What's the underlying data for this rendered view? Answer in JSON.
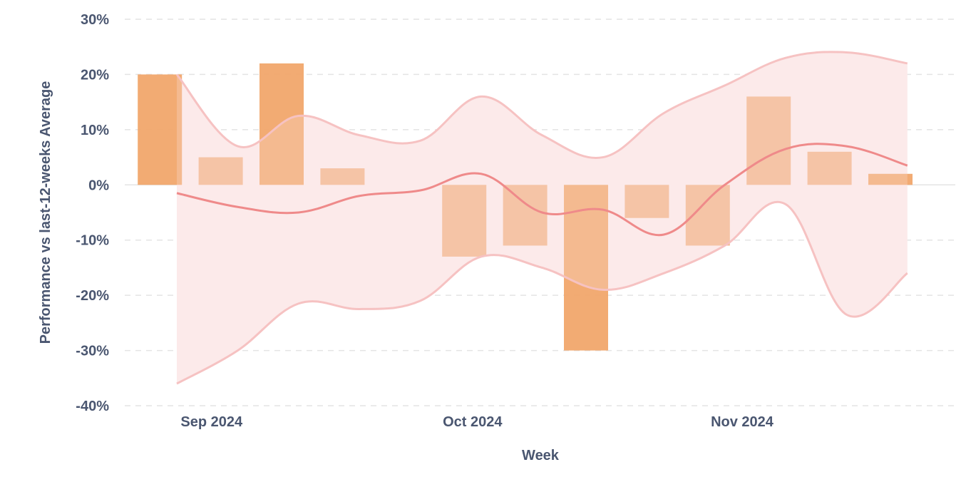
{
  "chart_data": {
    "type": "bar",
    "title": "",
    "xlabel": "Week",
    "ylabel": "Performance vs last-12-weeks Average",
    "ylim": [
      -40,
      30
    ],
    "y_ticks": [
      30,
      20,
      10,
      0,
      -10,
      -20,
      -30,
      -40
    ],
    "y_tick_format": "percent",
    "x_tick_labels": [
      {
        "label": "Sep 2024",
        "date": "2024-09-01"
      },
      {
        "label": "Oct 2024",
        "date": "2024-10-01"
      },
      {
        "label": "Nov 2024",
        "date": "2024-11-01"
      }
    ],
    "grid": true,
    "legend": "none",
    "colors": {
      "bar_positive": "#f2b48a",
      "bar_strong": "#f1a66c",
      "band_fill": "#fdeaea",
      "band_edge": "#f6c2c2",
      "trend_line": "#ef8a8a",
      "axis_text": "#4a5670"
    },
    "bars": [
      {
        "date": "2024-08-26",
        "value": 20,
        "emphasis": true
      },
      {
        "date": "2024-09-02",
        "value": 5,
        "emphasis": false
      },
      {
        "date": "2024-09-09",
        "value": 22,
        "emphasis": true
      },
      {
        "date": "2024-09-16",
        "value": 3,
        "emphasis": false
      },
      {
        "date": "2024-09-30",
        "value": -13,
        "emphasis": false
      },
      {
        "date": "2024-10-07",
        "value": -11,
        "emphasis": false
      },
      {
        "date": "2024-10-14",
        "value": -30,
        "emphasis": true
      },
      {
        "date": "2024-10-21",
        "value": -6,
        "emphasis": false
      },
      {
        "date": "2024-10-28",
        "value": -11,
        "emphasis": false
      },
      {
        "date": "2024-11-04",
        "value": 16,
        "emphasis": false
      },
      {
        "date": "2024-11-11",
        "value": 6,
        "emphasis": false
      },
      {
        "date": "2024-11-18",
        "value": 2,
        "emphasis": true
      }
    ],
    "series": [
      {
        "x": [
          "2024-08-28",
          "2024-09-04",
          "2024-09-11",
          "2024-09-18",
          "2024-09-25",
          "2024-10-02",
          "2024-10-09",
          "2024-10-16",
          "2024-10-23",
          "2024-10-30",
          "2024-11-06",
          "2024-11-13",
          "2024-11-20"
        ],
        "upper": [
          20,
          7,
          12.5,
          9,
          8,
          16,
          9,
          5,
          13,
          18,
          23,
          24,
          22
        ],
        "trend": [
          -1.5,
          -4,
          -5,
          -2,
          -1,
          2,
          -5,
          -4.5,
          -9,
          0,
          6.5,
          7,
          3.5
        ],
        "lower": [
          -36,
          -30,
          -21.5,
          -22.5,
          -21,
          -13,
          -15,
          -19,
          -16,
          -11,
          -3.5,
          -23.5,
          -16
        ]
      }
    ]
  }
}
